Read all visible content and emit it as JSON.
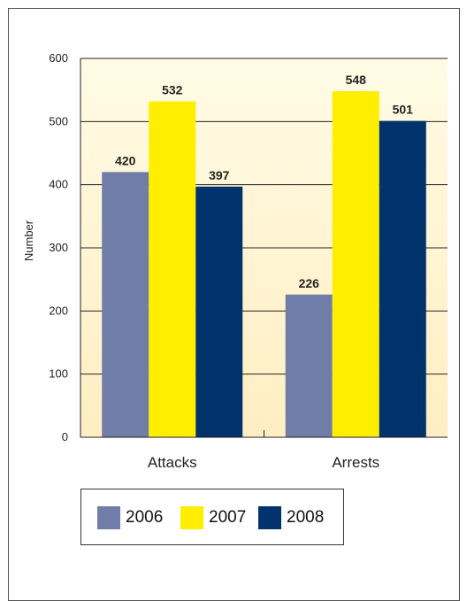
{
  "chart_data": {
    "type": "bar",
    "categories": [
      "Attacks",
      "Arrests"
    ],
    "series": [
      {
        "name": "2006",
        "values": [
          420,
          226
        ],
        "color": "#6f7da8"
      },
      {
        "name": "2007",
        "values": [
          532,
          548
        ],
        "color": "#ffee00"
      },
      {
        "name": "2008",
        "values": [
          397,
          501
        ],
        "color": "#00336b"
      }
    ],
    "ylabel": "Number",
    "ylim": [
      0,
      600
    ],
    "yticks": [
      0,
      100,
      200,
      300,
      400,
      500,
      600
    ],
    "grid": true,
    "legend_position": "bottom",
    "background_gradient": [
      "#fffbe5",
      "#ffeec2"
    ],
    "gridline_color": "#222222"
  },
  "legend": {
    "items": [
      {
        "label": "2006",
        "color": "#6f7da8"
      },
      {
        "label": "2007",
        "color": "#ffee00"
      },
      {
        "label": "2008",
        "color": "#00336b"
      }
    ]
  }
}
